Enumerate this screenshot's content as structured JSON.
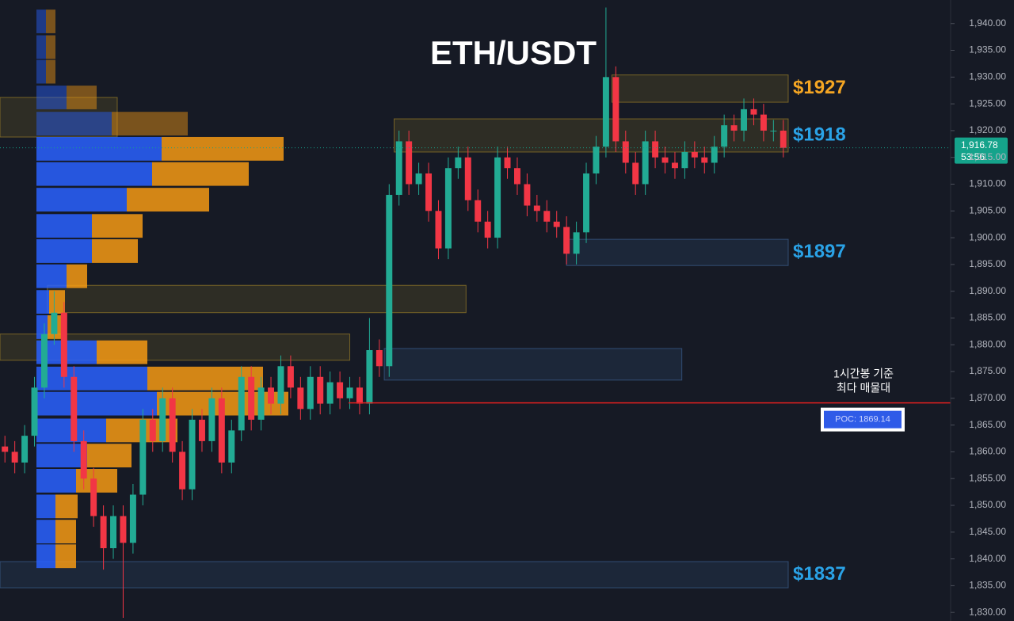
{
  "chart_data": {
    "type": "candlestick",
    "title": "ETH/USDT",
    "up_color": "#22ab94",
    "down_color": "#f23645",
    "xlim": [
      0,
      80
    ],
    "ylim": [
      1828.4,
      1944.4
    ],
    "yticks": [
      {
        "value": 1830,
        "label": "1,830.00"
      },
      {
        "value": 1835,
        "label": "1,835.00"
      },
      {
        "value": 1840,
        "label": "1,840.00"
      },
      {
        "value": 1845,
        "label": "1,845.00"
      },
      {
        "value": 1850,
        "label": "1,850.00"
      },
      {
        "value": 1855,
        "label": "1,855.00"
      },
      {
        "value": 1860,
        "label": "1,860.00"
      },
      {
        "value": 1865,
        "label": "1,865.00"
      },
      {
        "value": 1870,
        "label": "1,870.00"
      },
      {
        "value": 1875,
        "label": "1,875.00"
      },
      {
        "value": 1880,
        "label": "1,880.00"
      },
      {
        "value": 1885,
        "label": "1,885.00"
      },
      {
        "value": 1890,
        "label": "1,890.00"
      },
      {
        "value": 1895,
        "label": "1,895.00"
      },
      {
        "value": 1900,
        "label": "1,900.00"
      },
      {
        "value": 1905,
        "label": "1,905.00"
      },
      {
        "value": 1910,
        "label": "1,910.00"
      },
      {
        "value": 1915,
        "label": "1,915.00"
      },
      {
        "value": 1920,
        "label": "1,920.00"
      },
      {
        "value": 1925,
        "label": "1,925.00"
      },
      {
        "value": 1930,
        "label": "1,930.00"
      },
      {
        "value": 1935,
        "label": "1,935.00"
      },
      {
        "value": 1940,
        "label": "1,940.00"
      }
    ],
    "open": [
      1861,
      1860,
      1858,
      1863,
      1872,
      1882,
      1886,
      1874,
      1862,
      1855,
      1848,
      1842,
      1848,
      1843,
      1852,
      1866,
      1862,
      1870,
      1860,
      1853,
      1866,
      1862,
      1870,
      1858,
      1864,
      1874,
      1866,
      1872,
      1869,
      1876,
      1872,
      1868,
      1874,
      1869,
      1873,
      1870,
      1872,
      1869,
      1879,
      1876,
      1908,
      1918,
      1910,
      1912,
      1905,
      1898,
      1913,
      1915,
      1907,
      1903,
      1900,
      1915,
      1913,
      1910,
      1906,
      1905,
      1903,
      1902,
      1897,
      1901,
      1912,
      1917,
      1930,
      1918,
      1914,
      1910,
      1918,
      1915,
      1914,
      1913,
      1916,
      1915,
      1914,
      1917,
      1921,
      1920,
      1924,
      1923,
      1920,
      1920
    ],
    "high": [
      1863,
      1862,
      1865,
      1874,
      1884,
      1890,
      1888,
      1876,
      1864,
      1857,
      1850,
      1850,
      1850,
      1854,
      1868,
      1868,
      1872,
      1872,
      1862,
      1868,
      1868,
      1872,
      1872,
      1866,
      1876,
      1876,
      1874,
      1874,
      1878,
      1878,
      1874,
      1876,
      1876,
      1875,
      1875,
      1874,
      1874,
      1885,
      1881,
      1910,
      1920,
      1920,
      1914,
      1914,
      1907,
      1915,
      1917,
      1917,
      1909,
      1905,
      1917,
      1917,
      1915,
      1912,
      1908,
      1907,
      1905,
      1904,
      1903,
      1914,
      1919,
      1943,
      1932,
      1920,
      1916,
      1920,
      1920,
      1917,
      1916,
      1918,
      1918,
      1917,
      1919,
      1923,
      1923,
      1926,
      1926,
      1925,
      1922,
      1922
    ],
    "low": [
      1858,
      1856,
      1856,
      1861,
      1870,
      1880,
      1872,
      1860,
      1853,
      1846,
      1838,
      1840,
      1829,
      1841,
      1850,
      1860,
      1860,
      1858,
      1851,
      1851,
      1860,
      1860,
      1856,
      1856,
      1862,
      1864,
      1864,
      1867,
      1867,
      1870,
      1866,
      1866,
      1867,
      1867,
      1868,
      1868,
      1867,
      1867,
      1874,
      1874,
      1906,
      1908,
      1908,
      1903,
      1896,
      1896,
      1911,
      1905,
      1901,
      1898,
      1898,
      1911,
      1908,
      1904,
      1903,
      1901,
      1900,
      1895,
      1895,
      1899,
      1910,
      1915,
      1916,
      1912,
      1908,
      1908,
      1913,
      1912,
      1911,
      1911,
      1913,
      1912,
      1912,
      1915,
      1918,
      1918,
      1921,
      1918,
      1918,
      1915
    ],
    "close": [
      1860,
      1858,
      1863,
      1872,
      1882,
      1886,
      1874,
      1862,
      1855,
      1848,
      1842,
      1848,
      1843,
      1852,
      1866,
      1862,
      1870,
      1860,
      1853,
      1866,
      1862,
      1870,
      1858,
      1864,
      1874,
      1866,
      1872,
      1869,
      1876,
      1872,
      1868,
      1874,
      1869,
      1873,
      1870,
      1872,
      1869,
      1879,
      1876,
      1908,
      1918,
      1910,
      1912,
      1905,
      1898,
      1913,
      1915,
      1907,
      1903,
      1900,
      1915,
      1913,
      1910,
      1906,
      1905,
      1903,
      1902,
      1897,
      1901,
      1912,
      1917,
      1930,
      1918,
      1914,
      1910,
      1918,
      1915,
      1914,
      1913,
      1916,
      1915,
      1914,
      1917,
      1921,
      1920,
      1924,
      1923,
      1920,
      1920,
      1916.78
    ],
    "volume_profile": {
      "price_levels": [
        1940.4,
        1935.6,
        1931.0,
        1926.2,
        1921.3,
        1916.6,
        1911.9,
        1907.1,
        1902.2,
        1897.5,
        1892.8,
        1888.0,
        1883.3,
        1878.6,
        1873.7,
        1869.0,
        1864.0,
        1859.3,
        1854.6,
        1849.8,
        1845.1,
        1840.5
      ],
      "buy": [
        12,
        12,
        12,
        38,
        95,
        158,
        146,
        114,
        70,
        70,
        38,
        16,
        14,
        76,
        140,
        152,
        88,
        64,
        50,
        24,
        24,
        24
      ],
      "sell": [
        12,
        12,
        12,
        38,
        96,
        154,
        122,
        104,
        64,
        58,
        26,
        20,
        24,
        64,
        146,
        166,
        90,
        56,
        52,
        28,
        26,
        26
      ],
      "buy_color": "#2962ff",
      "sell_color": "#f59a14"
    },
    "zones": [
      {
        "low": 1925.3,
        "high": 1930.4,
        "x0": 62.1,
        "x1": 80,
        "color": "#c9a227",
        "label": "$1927",
        "label_color": "#f5a623"
      },
      {
        "low": 1916.0,
        "high": 1922.2,
        "x0": 40,
        "x1": 80,
        "color": "#c9a227",
        "label": "$1918",
        "label_color": "#2aa2e6"
      },
      {
        "low": 1894.8,
        "high": 1899.7,
        "x0": 57.5,
        "x1": 80,
        "color": "#4a7ab8",
        "label": "$1897",
        "label_color": "#2aa2e6"
      },
      {
        "low": 1886.0,
        "high": 1891.1,
        "x0": 4.8,
        "x1": 47.3,
        "color": "#c9a227"
      },
      {
        "low": 1877.1,
        "high": 1882.0,
        "x0": 0,
        "x1": 35.5,
        "color": "#c9a227"
      },
      {
        "low": 1918.8,
        "high": 1926.2,
        "x0": 0,
        "x1": 11.9,
        "color": "#c9a227"
      },
      {
        "low": 1873.4,
        "high": 1879.3,
        "x0": 39,
        "x1": 69.2,
        "color": "#4a7ab8"
      },
      {
        "low": 1834.6,
        "high": 1839.5,
        "x0": 0,
        "x1": 80,
        "color": "#4a7ab8",
        "label": "$1837",
        "label_color": "#2aa2e6"
      }
    ],
    "poc": {
      "value": 1869.14,
      "label": "POC: 1869.14",
      "note": [
        "1시간봉 기준",
        "최다 매물대"
      ],
      "color": "#e0201f"
    },
    "last_price": {
      "value": 1916.78,
      "label": "1,916.78",
      "countdown": "53:56",
      "color": "#15a38b"
    }
  }
}
